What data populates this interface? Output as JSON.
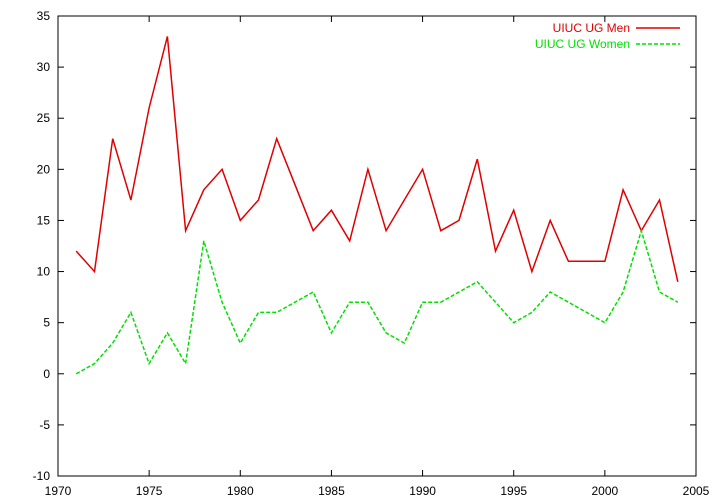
{
  "chart_data": {
    "type": "line",
    "title": "",
    "xlabel": "",
    "ylabel": "",
    "xlim": [
      1970,
      2005
    ],
    "ylim": [
      -10,
      35
    ],
    "xticks": [
      "1970",
      "1975",
      "1980",
      "1985",
      "1990",
      "1995",
      "2000",
      "2005"
    ],
    "yticks": [
      "-10",
      "-5",
      "0",
      "5",
      "10",
      "15",
      "20",
      "25",
      "30",
      "35"
    ],
    "grid": false,
    "legend_position": "top-right",
    "x": [
      1971,
      1972,
      1973,
      1974,
      1975,
      1976,
      1977,
      1978,
      1979,
      1980,
      1981,
      1982,
      1983,
      1984,
      1985,
      1986,
      1987,
      1988,
      1989,
      1990,
      1991,
      1992,
      1993,
      1994,
      1995,
      1996,
      1997,
      1998,
      1999,
      2000,
      2001,
      2002,
      2003,
      2004
    ],
    "series": [
      {
        "name": "UIUC UG Men",
        "color": "#e00000",
        "style": "solid",
        "values": [
          12,
          10,
          23,
          17,
          26,
          33,
          14,
          18,
          20,
          15,
          17,
          23,
          18.5,
          14,
          16,
          13,
          20,
          14,
          17,
          20,
          14,
          15,
          21,
          12,
          16,
          10,
          15,
          11,
          11,
          11,
          18,
          14,
          17,
          9
        ]
      },
      {
        "name": "UIUC UG Women",
        "color": "#00e000",
        "style": "dashed",
        "values": [
          0,
          1,
          3,
          6,
          1,
          4,
          1,
          13,
          7,
          3,
          6,
          6,
          7,
          8,
          4,
          7,
          7,
          4,
          3,
          7,
          7,
          8,
          9,
          7,
          5,
          6,
          8,
          7,
          6,
          5,
          8,
          14,
          8,
          7
        ]
      }
    ]
  }
}
